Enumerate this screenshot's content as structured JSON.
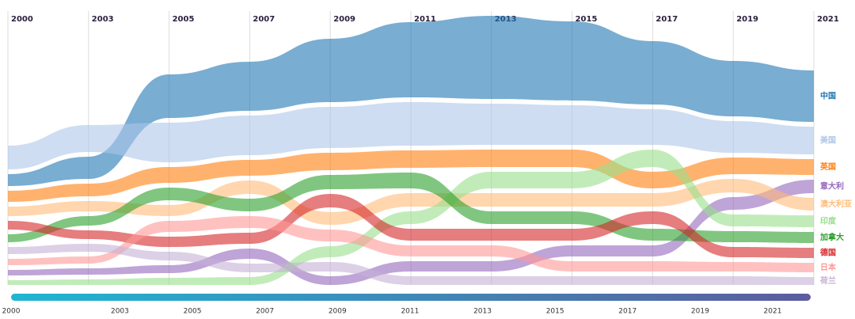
{
  "chart_data": {
    "type": "ribbon",
    "categories": [
      "2000",
      "2003",
      "2005",
      "2007",
      "2009",
      "2011",
      "2013",
      "2015",
      "2017",
      "2019",
      "2021"
    ],
    "series": [
      {
        "name": "中国",
        "color": "#1f77b4",
        "values": [
          15,
          28,
          55,
          62,
          80,
          95,
          105,
          100,
          80,
          70,
          65
        ]
      },
      {
        "name": "美国",
        "color": "#aec7e8",
        "values": [
          30,
          34,
          50,
          50,
          52,
          55,
          52,
          50,
          45,
          40,
          35
        ]
      },
      {
        "name": "英国",
        "color": "#ff7f0e",
        "values": [
          14,
          16,
          20,
          20,
          22,
          22,
          22,
          22,
          21,
          21,
          20
        ]
      },
      {
        "name": "意大利",
        "color": "#9467bd",
        "values": [
          7,
          8,
          10,
          13,
          11,
          13,
          13,
          14,
          14,
          16,
          17
        ]
      },
      {
        "name": "澳大利亚",
        "color": "#ffbb78",
        "values": [
          12,
          13,
          14,
          17,
          16,
          17,
          17,
          17,
          17,
          17,
          16
        ]
      },
      {
        "name": "印度",
        "color": "#98df8a",
        "values": [
          6,
          7,
          9,
          10,
          14,
          16,
          21,
          21,
          22,
          15,
          15
        ]
      },
      {
        "name": "加拿大",
        "color": "#2ca02c",
        "values": [
          10,
          12,
          16,
          16,
          18,
          20,
          16,
          16,
          15,
          14,
          14
        ]
      },
      {
        "name": "德国",
        "color": "#d62728",
        "values": [
          11,
          11,
          13,
          14,
          17,
          15,
          15,
          15,
          16,
          13,
          13
        ]
      },
      {
        "name": "日本",
        "color": "#ff9896",
        "values": [
          8,
          9,
          14,
          15,
          15,
          14,
          14,
          13,
          13,
          12,
          12
        ]
      },
      {
        "name": "荷兰",
        "color": "#c5b0d5",
        "values": [
          9,
          10,
          11,
          11,
          12,
          11,
          11,
          11,
          11,
          11,
          10
        ]
      }
    ]
  }
}
